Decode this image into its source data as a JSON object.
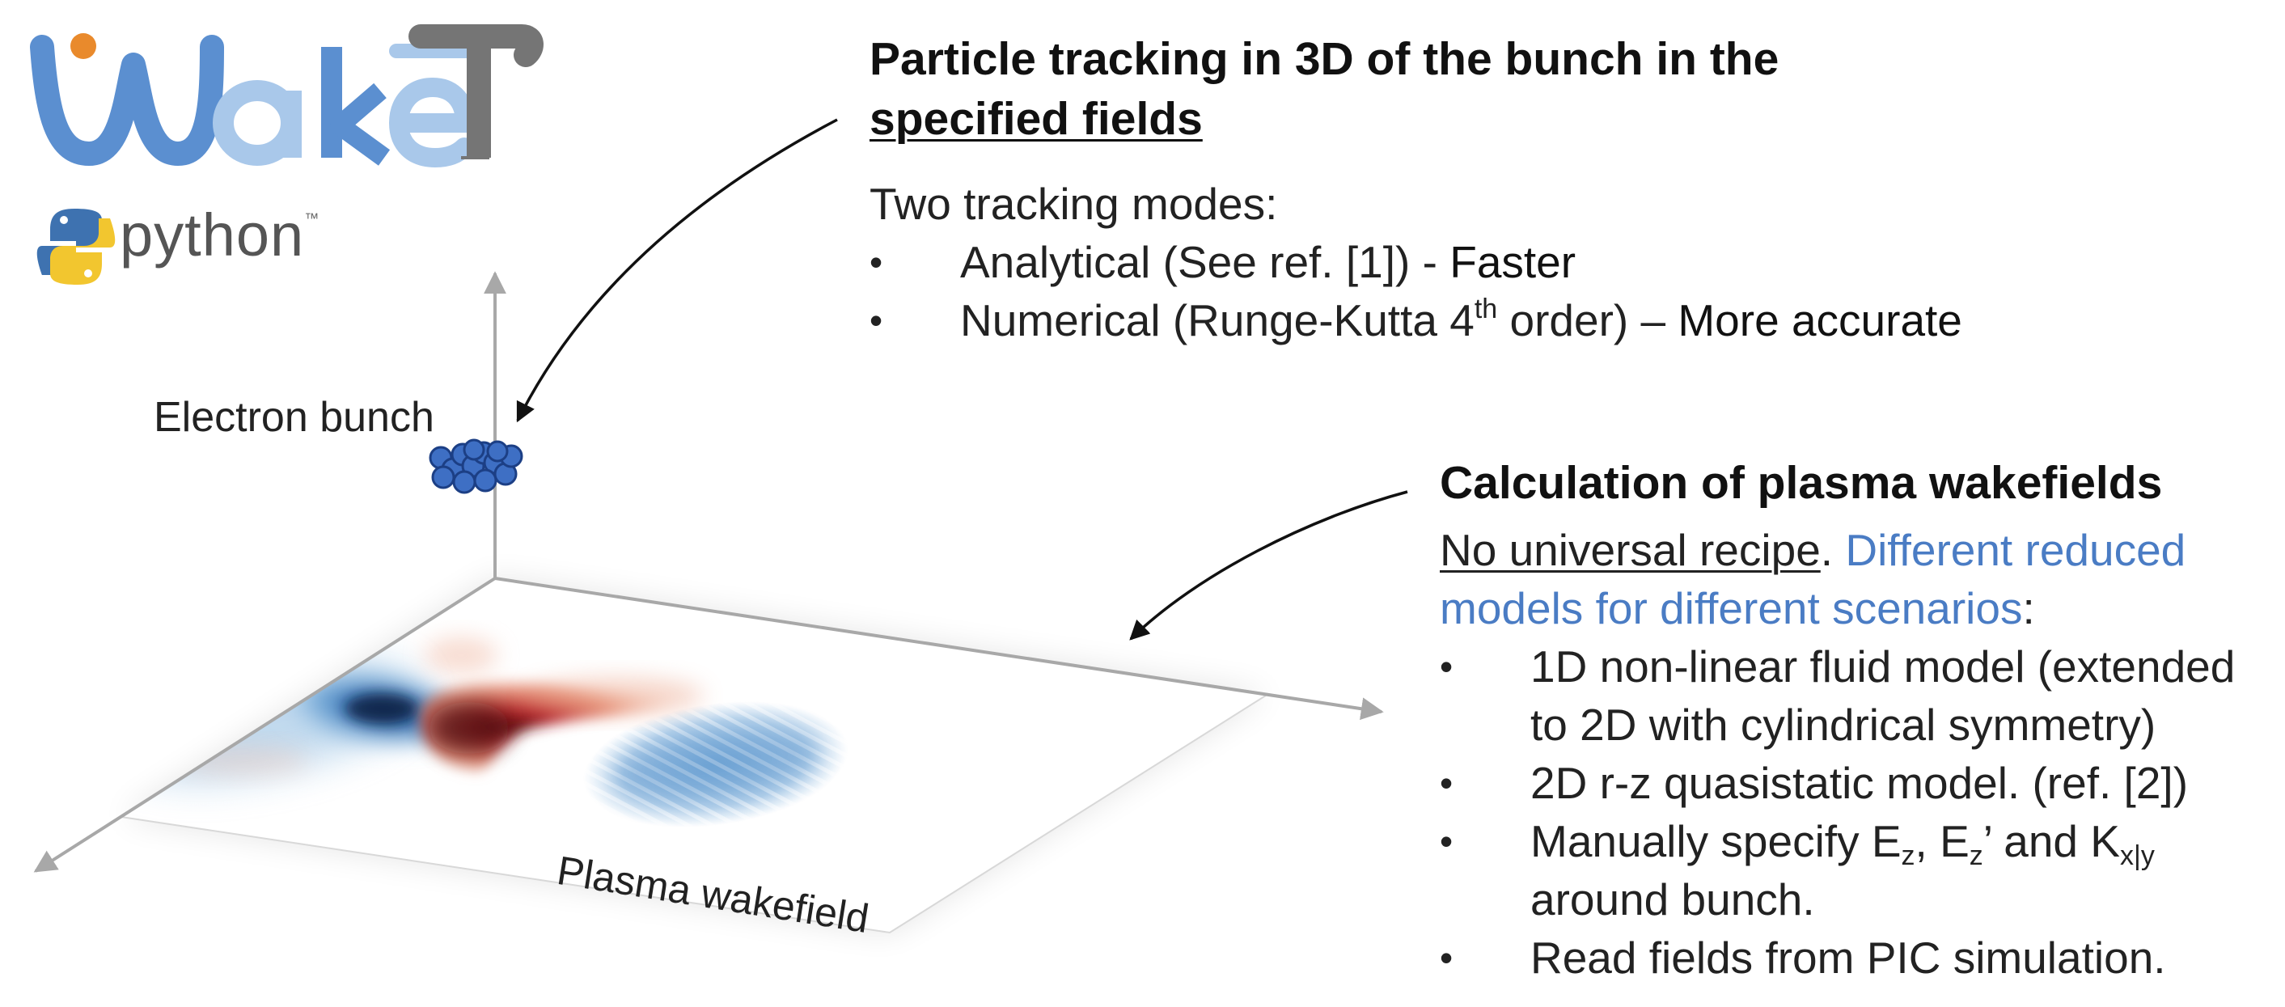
{
  "logo": {
    "name": "WakeT",
    "python_text": "python",
    "python_tm": "™",
    "colors": {
      "dark_blue": "#5b8fd0",
      "light_blue": "#a9c8ea",
      "gray": "#757575",
      "orange": "#e98a2c"
    }
  },
  "labels": {
    "electron_bunch": "Electron bunch",
    "plasma_wakefield": "Plasma wakefield"
  },
  "tracking": {
    "title_line1": "Particle tracking in 3D of the bunch in the",
    "title_line2": "specified fields",
    "intro": "Two tracking modes:",
    "bullet": "•",
    "mode1_text": "Analytical (See ref. [1]) - ",
    "mode1_emph": "Faster",
    "mode2_text_a": "Numerical (Runge-Kutta 4",
    "mode2_sup": "th",
    "mode2_text_b": " order) – ",
    "mode2_emph": "More accurate"
  },
  "wakefields": {
    "title": "Calculation of plasma wakefields",
    "line1_underlined": "No universal recipe",
    "line1_period": ". ",
    "line1_blue_a": "Different ",
    "line1_blue_b": "reduced",
    "line2_blue_a": "models",
    "line2_blue_b": " for different scenarios",
    "line2_colon": ":",
    "bullet": "•",
    "item1_line1": "1D non-linear fluid model (extended",
    "item1_line2": "to 2D with cylindrical symmetry)",
    "item2": "2D r-z quasistatic model. (ref. [2])",
    "item3_a": "Manually specify E",
    "item3_sub1": "z",
    "item3_b": ", E",
    "item3_sub2": "z",
    "item3_c": "’ and K",
    "item3_sub3": "x|y",
    "item3_line2": "around bunch.",
    "item4": "Read fields from PIC simulation."
  },
  "colors": {
    "axis": "#a8a8a8",
    "bunch_fill": "#3e6fc4",
    "bunch_stroke": "#1c3f85",
    "wake_red": "#c0262b",
    "wake_blue": "#1f6fb8",
    "arrow": "#111111"
  }
}
